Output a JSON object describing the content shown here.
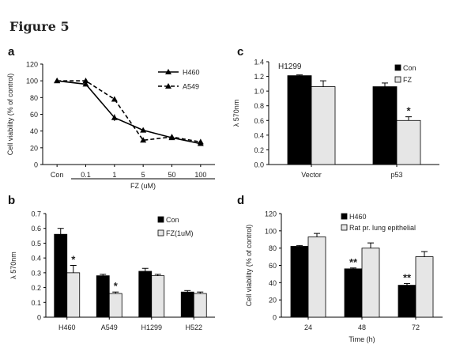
{
  "figure": {
    "title": "Figure 5",
    "panel_letters": [
      "a",
      "b",
      "c",
      "d"
    ]
  },
  "chart_data": [
    {
      "panel": "a",
      "type": "line",
      "ylabel": "Cell viability (% of control)",
      "xlabel": "FZ (uM)",
      "categories": [
        "Con",
        "0.1",
        "1",
        "5",
        "50",
        "100"
      ],
      "ylim": [
        0,
        120
      ],
      "yticks": [
        "0",
        "20",
        "40",
        "60",
        "80",
        "100",
        "120"
      ],
      "grid": false,
      "legend_position": "top-right",
      "series": [
        {
          "name": "H460",
          "values": [
            100,
            96,
            56,
            41,
            32,
            25
          ],
          "errors": [
            0,
            2,
            4,
            2,
            2,
            2
          ],
          "marker": "triangle",
          "dash": "solid"
        },
        {
          "name": "A549",
          "values": [
            100,
            100,
            78,
            29,
            33,
            27
          ],
          "errors": [
            0,
            2,
            2,
            2,
            2,
            2
          ],
          "marker": "triangle",
          "dash": "dashed"
        }
      ]
    },
    {
      "panel": "b",
      "type": "bar",
      "ylabel": "λ 570nm",
      "categories": [
        "H460",
        "A549",
        "H1299",
        "H522"
      ],
      "ylim": [
        0,
        0.7
      ],
      "yticks": [
        "0",
        "0.1",
        "0.2",
        "0.3",
        "0.4",
        "0.5",
        "0.6",
        "0.7"
      ],
      "grid": false,
      "legend_position": "top-right",
      "series": [
        {
          "name": "Con",
          "values": [
            0.56,
            0.28,
            0.31,
            0.17
          ],
          "errors": [
            0.04,
            0.01,
            0.02,
            0.01
          ],
          "color": "#000000"
        },
        {
          "name": "FZ(1uM)",
          "values": [
            0.3,
            0.16,
            0.28,
            0.16
          ],
          "errors": [
            0.05,
            0.01,
            0.01,
            0.01
          ],
          "color": "#e6e6e6"
        }
      ],
      "annotations": [
        {
          "category": 0,
          "series": 1,
          "text": "*"
        },
        {
          "category": 1,
          "series": 1,
          "text": "*"
        }
      ]
    },
    {
      "panel": "c",
      "type": "bar",
      "ylabel": "λ 570nm",
      "inset_label": "H1299",
      "categories": [
        "Vector",
        "p53"
      ],
      "ylim": [
        0,
        1.4
      ],
      "yticks": [
        "0.0",
        "0.2",
        "0.4",
        "0.6",
        "0.8",
        "1.0",
        "1.2",
        "1.4"
      ],
      "grid": false,
      "legend_position": "top-right",
      "series": [
        {
          "name": "Con",
          "values": [
            1.21,
            1.06
          ],
          "errors": [
            0.01,
            0.05
          ],
          "color": "#000000"
        },
        {
          "name": "FZ",
          "values": [
            1.06,
            0.6
          ],
          "errors": [
            0.08,
            0.05
          ],
          "color": "#e6e6e6"
        }
      ],
      "annotations": [
        {
          "category": 1,
          "series": 1,
          "text": "*"
        }
      ]
    },
    {
      "panel": "d",
      "type": "bar",
      "ylabel": "Cell viability (% of control)",
      "xlabel": "Time (h)",
      "categories": [
        "24",
        "48",
        "72"
      ],
      "ylim": [
        0,
        120
      ],
      "yticks": [
        "0",
        "20",
        "40",
        "60",
        "80",
        "100",
        "120"
      ],
      "grid": false,
      "legend_position": "top",
      "series": [
        {
          "name": "H460",
          "values": [
            82,
            56,
            37
          ],
          "errors": [
            1,
            1,
            2
          ],
          "color": "#000000"
        },
        {
          "name": "Rat pr. lung epithelial",
          "values": [
            93,
            80,
            70
          ],
          "errors": [
            4,
            6,
            6
          ],
          "color": "#e6e6e6"
        }
      ],
      "annotations": [
        {
          "category": 1,
          "series": 0,
          "text": "**"
        },
        {
          "category": 2,
          "series": 0,
          "text": "**"
        }
      ]
    }
  ]
}
